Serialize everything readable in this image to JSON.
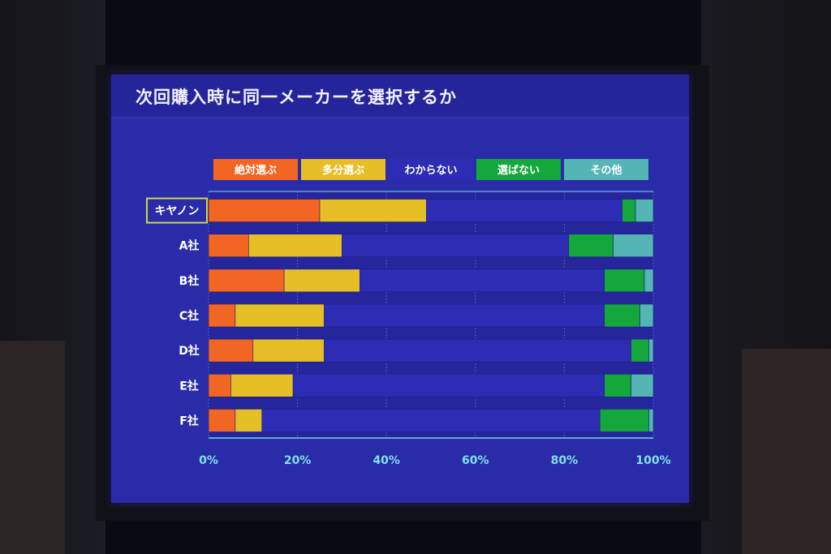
{
  "slide_title": "次回購入時に同一メーカーを選択するか",
  "chart_data": {
    "type": "bar",
    "orientation": "horizontal",
    "stacked": true,
    "title": "次回購入時に同一メーカーを選択するか",
    "categories": [
      "キヤノン",
      "A社",
      "B社",
      "C社",
      "D社",
      "E社",
      "F社"
    ],
    "highlighted_category": "キヤノン",
    "series": [
      {
        "name": "絶対選ぶ",
        "color": "#f26522",
        "values": [
          25,
          9,
          17,
          6,
          10,
          5,
          6
        ]
      },
      {
        "name": "多分選ぶ",
        "color": "#e6be26",
        "values": [
          24,
          21,
          17,
          20,
          16,
          14,
          6
        ]
      },
      {
        "name": "わからない",
        "color": "#2c2db4",
        "values": [
          44,
          51,
          55,
          63,
          69,
          70,
          76
        ]
      },
      {
        "name": "選ばない",
        "color": "#14a83c",
        "values": [
          3,
          10,
          9,
          8,
          4,
          6,
          11
        ]
      },
      {
        "name": "その他",
        "color": "#55b4b4",
        "values": [
          4,
          9,
          2,
          3,
          1,
          5,
          1
        ]
      }
    ],
    "xlim": [
      0,
      100
    ],
    "ticks": [
      "0%",
      "20%",
      "40%",
      "60%",
      "80%",
      "100%"
    ],
    "legend_position": "top",
    "grid": true
  }
}
